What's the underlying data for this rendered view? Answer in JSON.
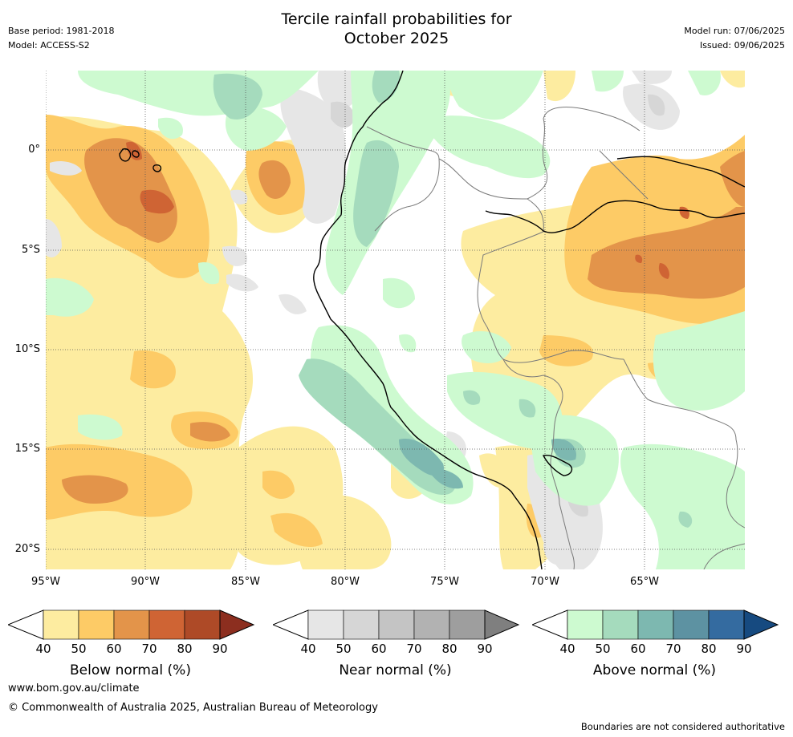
{
  "header": {
    "title_line1": "Tercile rainfall probabilities for",
    "title_line2": "October 2025",
    "base_period": "Base period: 1981-2018",
    "model": "Model: ACCESS-S2",
    "model_run": "Model run: 07/06/2025",
    "issued": "Issued: 09/06/2025"
  },
  "map": {
    "lat_ticks": [
      "0°",
      "5°S",
      "10°S",
      "15°S",
      "20°S"
    ],
    "lon_ticks": [
      "95°W",
      "90°W",
      "85°W",
      "80°W",
      "75°W",
      "70°W",
      "65°W"
    ]
  },
  "legends": [
    {
      "title": "Below normal (%)",
      "ticks": [
        "40",
        "50",
        "60",
        "70",
        "80",
        "90"
      ],
      "colors": [
        "#fdeca0",
        "#fdcb66",
        "#e3944a",
        "#cf6434",
        "#ae4a27",
        "#8c2e1f"
      ]
    },
    {
      "title": "Near normal (%)",
      "ticks": [
        "40",
        "50",
        "60",
        "70",
        "80",
        "90"
      ],
      "colors": [
        "#e6e6e6",
        "#d6d6d6",
        "#c4c4c4",
        "#b2b2b2",
        "#9e9e9e",
        "#7f7f7f"
      ]
    },
    {
      "title": "Above normal (%)",
      "ticks": [
        "40",
        "50",
        "60",
        "70",
        "80",
        "90"
      ],
      "colors": [
        "#cdfad0",
        "#a5dbbd",
        "#7db8b0",
        "#5d92a2",
        "#346ba0",
        "#164a80"
      ]
    }
  ],
  "footer": {
    "website": "www.bom.gov.au/climate",
    "copyright": "© Commonwealth of Australia 2025, Australian Bureau of Meteorology",
    "disclaimer": "Boundaries are not considered authoritative"
  }
}
